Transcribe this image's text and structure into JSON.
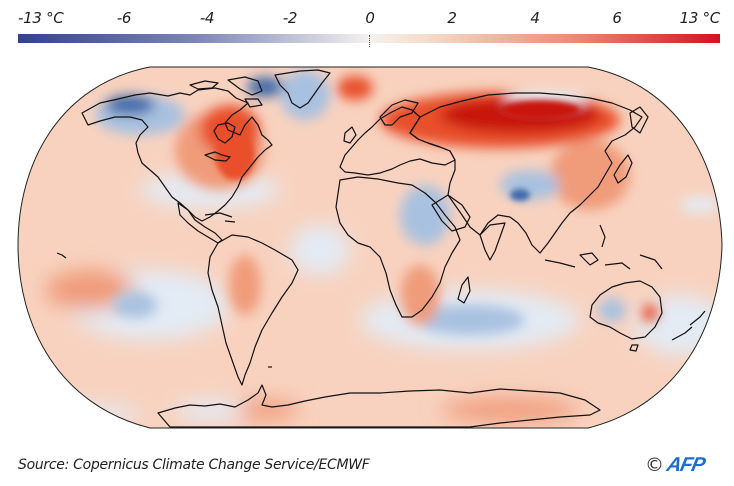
{
  "legend": {
    "ticks": [
      {
        "label": "-13 °C",
        "value": -13
      },
      {
        "label": "-6",
        "value": -6
      },
      {
        "label": "-4",
        "value": -4
      },
      {
        "label": "-2",
        "value": -2
      },
      {
        "label": "0",
        "value": 0
      },
      {
        "label": "2",
        "value": 2
      },
      {
        "label": "4",
        "value": 4
      },
      {
        "label": "6",
        "value": 6
      },
      {
        "label": "13 °C",
        "value": 13
      }
    ],
    "colors": {
      "cold_extreme": "#33418f",
      "cold_mid": "#7c84b8",
      "neutral": "#f4f2ef",
      "warm_light": "#f6dccb",
      "warm_mid": "#e88a6c",
      "warm_extreme": "#d7111b"
    }
  },
  "map": {
    "colors": {
      "ocean_base": "#f8d2bf",
      "cool_light": "#e3ebf5",
      "cool_mid": "#a9c1e0",
      "cool_strong": "#3f6aaa",
      "warm_mid": "#f09b7a",
      "warm_strong": "#e8502a",
      "warm_extreme": "#c8150f",
      "coastline": "#111111"
    },
    "anomaly_regions": [
      {
        "name": "siberia-russia",
        "anomaly": "strong-warm"
      },
      {
        "name": "eastern-canada-us",
        "anomaly": "warm"
      },
      {
        "name": "alaska",
        "anomaly": "cold"
      },
      {
        "name": "greenland",
        "anomaly": "cool"
      },
      {
        "name": "svalbard",
        "anomaly": "warm"
      },
      {
        "name": "sahara-arabia",
        "anomaly": "cool"
      },
      {
        "name": "central-asia",
        "anomaly": "cool"
      },
      {
        "name": "southern-indian-ocean",
        "anomaly": "cool"
      },
      {
        "name": "western-australia",
        "anomaly": "cool"
      },
      {
        "name": "eastern-australia",
        "anomaly": "warm"
      },
      {
        "name": "south-pacific",
        "anomaly": "cool"
      },
      {
        "name": "antarctica",
        "anomaly": "warm"
      }
    ]
  },
  "footer": {
    "source": "Source: Copernicus Climate Change Service/ECMWF",
    "copyright": "©",
    "logo_text": "AFP"
  }
}
